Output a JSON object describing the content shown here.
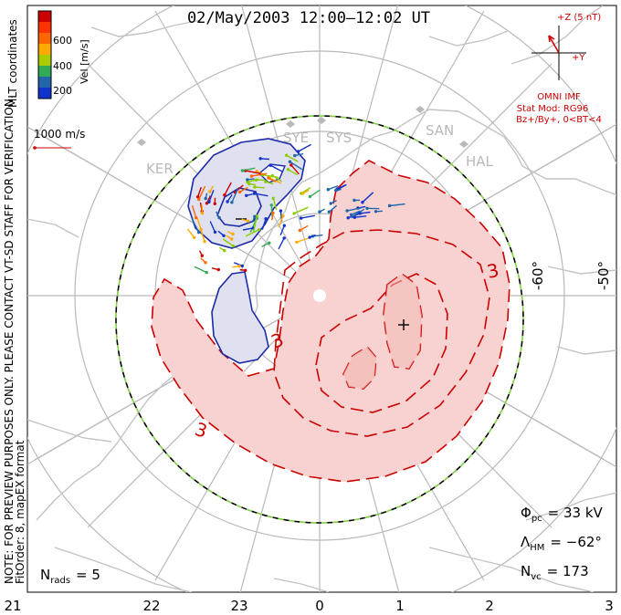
{
  "title": "02/May/2003 12:00–12:02 UT",
  "side_note_line1": "NOTE: FOR PREVIEW PURPOSES ONLY. PLEASE CONTACT VT-SD STAFF FOR VERIFICATION.",
  "side_note_line2": "FitOrder: 8, mapEX format",
  "color_scale": {
    "label": "Vel [m/s]",
    "ticks": [
      "600",
      "400",
      "200"
    ],
    "coordinates": "MLT coordinates",
    "colors": [
      "#cc0000",
      "#ff6600",
      "#ffaa00",
      "#88cc00",
      "#33aa55",
      "#2266aa",
      "#1133cc"
    ]
  },
  "reference_vector": {
    "label": "1000 m/s",
    "color": "#cc0000"
  },
  "imf": {
    "z_label": "+Z (5 nT)",
    "y_label": "+Y",
    "source": "OMNI IMF",
    "stat_mod": "Stat Mod: RG96",
    "condition": "Bz+/By+, 0<BT<4",
    "color": "#cc0000"
  },
  "stations": [
    "KER",
    "SYE",
    "SYS",
    "SAN",
    "HAL"
  ],
  "latitude_labels": [
    "-60°",
    "-50°"
  ],
  "mlt_labels": [
    "21",
    "22",
    "23",
    "0",
    "1",
    "2",
    "3"
  ],
  "contour_labels": [
    "3",
    "3",
    "3"
  ],
  "stats": {
    "phi_pc": "Φ",
    "phi_pc_sub": "pc",
    "phi_pc_value": "= 33 kV",
    "lambda_hm": "Λ",
    "lambda_hm_sub": "HM",
    "lambda_hm_value": "= −62°",
    "n_vc": "N",
    "n_vc_sub": "vc",
    "n_vc_value": "= 173",
    "n_rads": "N",
    "n_rads_sub": "rads",
    "n_rads_value": "= 5"
  },
  "colors": {
    "positive_fill": "#f8d2d0",
    "positive_line": "#cc0000",
    "negative_fill": "#dfe0f0",
    "negative_line": "#1a2aa8",
    "hm_boundary": "#7fcf3f",
    "grid": "#b9b9b9"
  }
}
